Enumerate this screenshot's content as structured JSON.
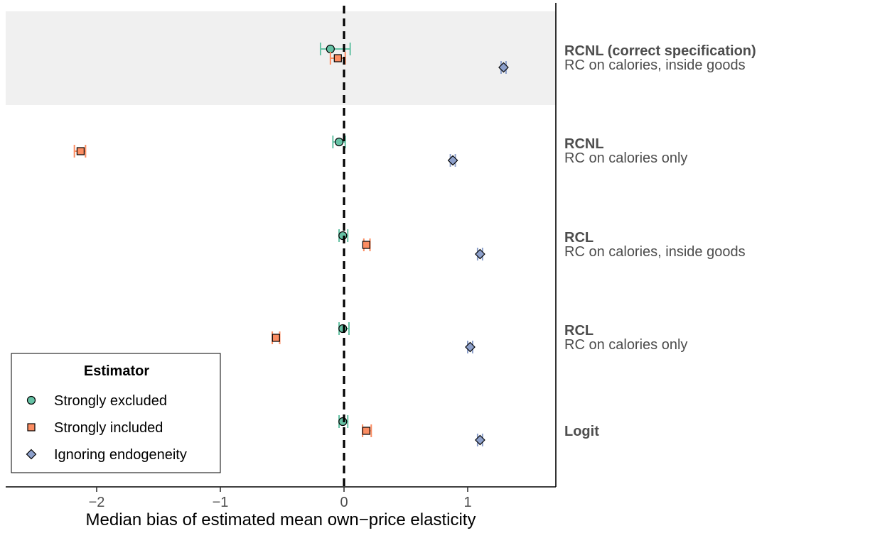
{
  "chart_data": {
    "type": "scatter",
    "title": "",
    "xlabel": "Median bias of estimated mean own−price elasticity",
    "ylabel": "",
    "xlim": [
      -2.75,
      1.72
    ],
    "xticks": [
      -2,
      -1,
      0,
      1
    ],
    "xtick_labels": [
      "−2",
      "−1",
      "0",
      "1"
    ],
    "reference_line_x": 0,
    "highlighted_row": 0,
    "rows": [
      {
        "title": "RCNL (correct specification)",
        "subtitle": "RC on calories, inside goods"
      },
      {
        "title": "RCNL",
        "subtitle": "RC on calories only"
      },
      {
        "title": "RCL",
        "subtitle": "RC on calories, inside goods"
      },
      {
        "title": "RCL",
        "subtitle": "RC on calories only"
      },
      {
        "title": "Logit",
        "subtitle": ""
      }
    ],
    "legend": {
      "title": "Estimator",
      "position": "bottom-left"
    },
    "series": [
      {
        "name": "Strongly excluded",
        "marker": "circle",
        "color": "#66c2a5",
        "values": [
          -0.11,
          -0.04,
          -0.01,
          -0.01,
          -0.01
        ],
        "ci": [
          [
            -0.19,
            0.05
          ],
          [
            -0.09,
            0.01
          ],
          [
            -0.04,
            0.03
          ],
          [
            -0.04,
            0.04
          ],
          [
            -0.04,
            0.03
          ]
        ]
      },
      {
        "name": "Strongly included",
        "marker": "square",
        "color": "#fc8d62",
        "values": [
          -0.05,
          -2.13,
          0.18,
          -0.55,
          0.18
        ],
        "ci": [
          [
            -0.11,
            0.01
          ],
          [
            -2.18,
            -2.09
          ],
          [
            0.16,
            0.21
          ],
          [
            -0.58,
            -0.52
          ],
          [
            0.15,
            0.22
          ]
        ]
      },
      {
        "name": "Ignoring endogeneity",
        "marker": "diamond",
        "color": "#8da0cb",
        "values": [
          1.29,
          0.88,
          1.1,
          1.02,
          1.1
        ],
        "ci": [
          [
            1.27,
            1.31
          ],
          [
            0.86,
            0.9
          ],
          [
            1.08,
            1.12
          ],
          [
            1.0,
            1.04
          ],
          [
            1.08,
            1.12
          ]
        ]
      }
    ]
  }
}
